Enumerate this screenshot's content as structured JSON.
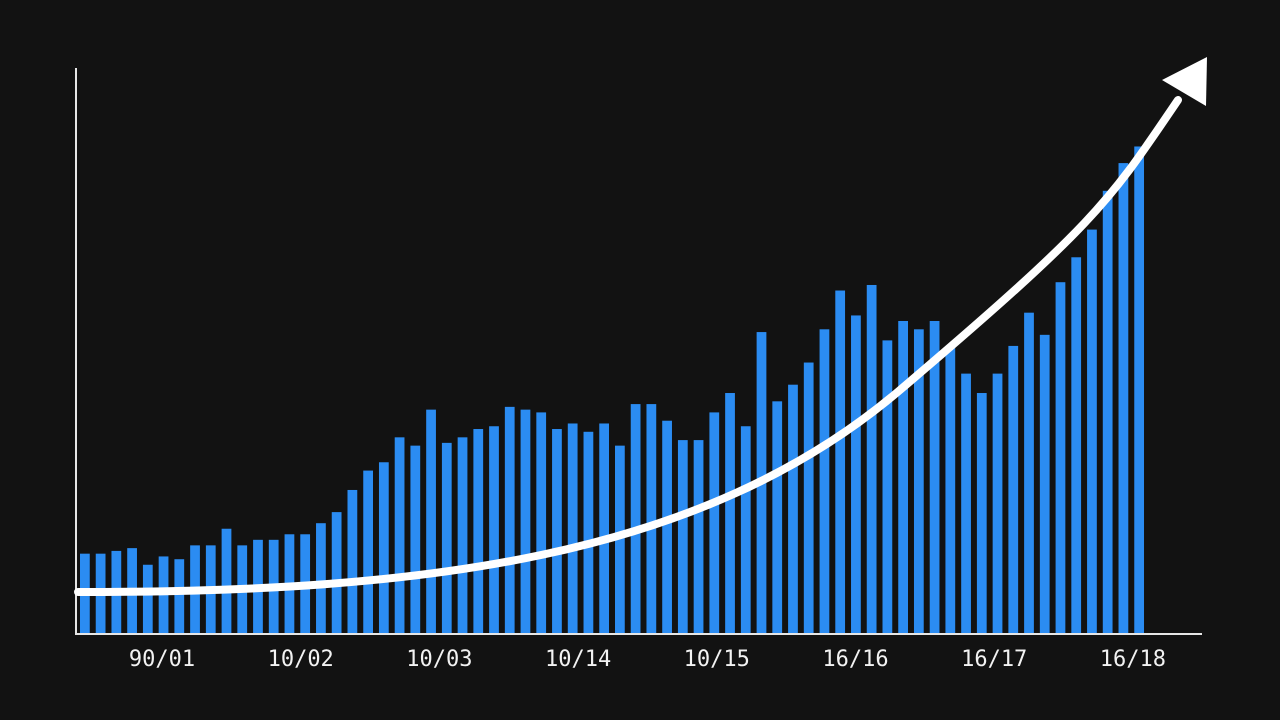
{
  "chart_data": {
    "type": "bar",
    "title": "",
    "xlabel": "",
    "ylabel": "",
    "grid": false,
    "ylim": [
      0,
      100
    ],
    "tick_labels": [
      "90/01",
      "10/02",
      "10/03",
      "10/14",
      "10/15",
      "16/16",
      "16/17",
      "16/18"
    ],
    "values": [
      14.5,
      14.5,
      15,
      15.5,
      12.5,
      14,
      13.5,
      16,
      16,
      19,
      16,
      17,
      17,
      18,
      18,
      20,
      22,
      26,
      29.5,
      31,
      35.5,
      34,
      40.5,
      34.5,
      35.5,
      37,
      37.5,
      41,
      40.5,
      40,
      37,
      38,
      36.5,
      38,
      34,
      41.5,
      41.5,
      38.5,
      35,
      35,
      40,
      43.5,
      37.5,
      54.5,
      42,
      45,
      49,
      55,
      62,
      57.5,
      63,
      53,
      56.5,
      55,
      56.5,
      52,
      47,
      43.5,
      47,
      52,
      58,
      54,
      63.5,
      68,
      73,
      80,
      85,
      88
    ],
    "series_color": "#2b8cf2",
    "arrow_color": "#ffffff",
    "axis_color": "#e6e6e6"
  }
}
